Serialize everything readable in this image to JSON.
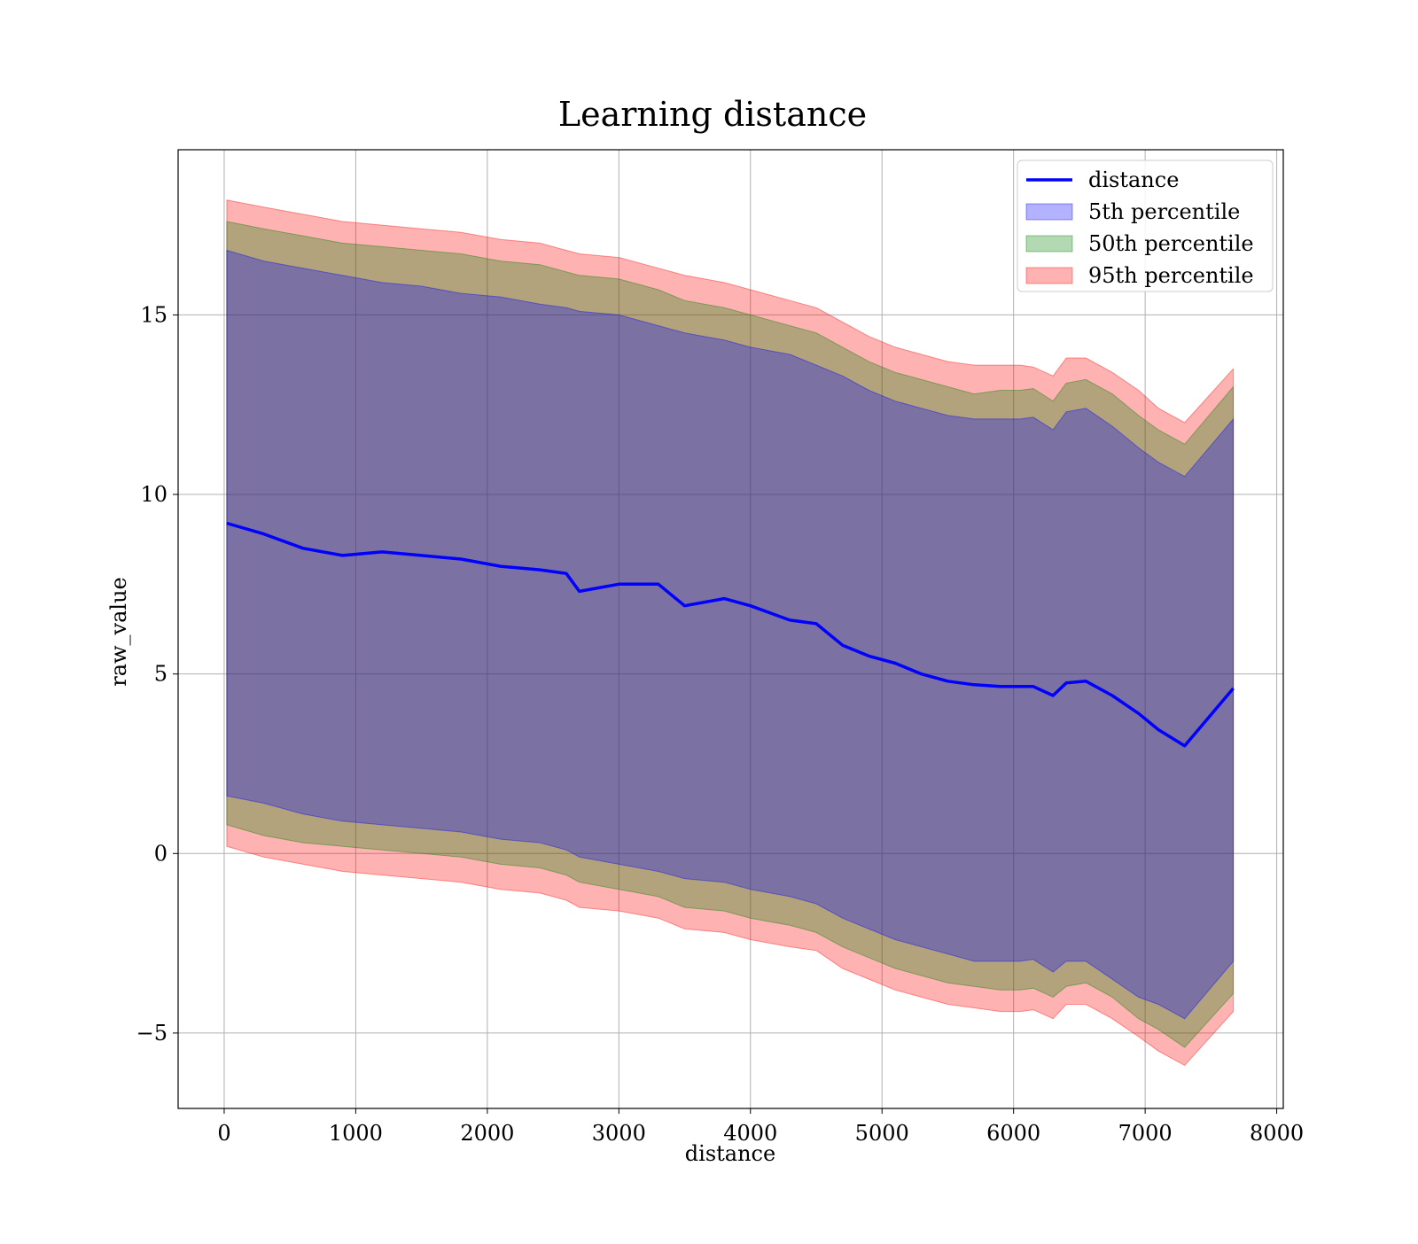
{
  "chart_data": {
    "type": "area",
    "title": "Learning distance",
    "xlabel": "distance",
    "ylabel": "raw_value",
    "xlim": [
      -350,
      8050
    ],
    "ylim": [
      -7.1,
      19.6
    ],
    "xticks": [
      0,
      1000,
      2000,
      3000,
      4000,
      5000,
      6000,
      7000,
      8000
    ],
    "xtick_labels": [
      "0",
      "1000",
      "2000",
      "3000",
      "4000",
      "5000",
      "6000",
      "7000",
      "8000"
    ],
    "yticks": [
      -5,
      0,
      5,
      10,
      15
    ],
    "ytick_labels": [
      "−5",
      "0",
      "5",
      "10",
      "15"
    ],
    "grid": true,
    "legend_position": "top-right",
    "colors": {
      "line": "#0000ff",
      "band_5th": "#0000ff",
      "band_50th": "#008000",
      "band_95th": "#ff0000"
    },
    "x": [
      20,
      300,
      600,
      900,
      1200,
      1500,
      1800,
      2100,
      2400,
      2600,
      2700,
      3000,
      3300,
      3500,
      3800,
      4000,
      4300,
      4500,
      4700,
      4900,
      5100,
      5300,
      5500,
      5700,
      5900,
      6050,
      6150,
      6300,
      6400,
      6550,
      6750,
      6950,
      7100,
      7300,
      7670
    ],
    "series": [
      {
        "name": "distance",
        "kind": "line",
        "y": [
          9.2,
          8.9,
          8.5,
          8.3,
          8.4,
          8.3,
          8.2,
          8.0,
          7.9,
          7.8,
          7.3,
          7.5,
          7.5,
          6.9,
          7.1,
          6.9,
          6.5,
          6.4,
          5.8,
          5.5,
          5.3,
          5.0,
          4.8,
          4.7,
          4.65,
          4.65,
          4.65,
          4.4,
          4.75,
          4.8,
          4.4,
          3.9,
          3.45,
          3.0,
          4.6
        ]
      },
      {
        "name": "5th percentile",
        "kind": "band",
        "lower": [
          1.6,
          1.4,
          1.1,
          0.9,
          0.8,
          0.7,
          0.6,
          0.4,
          0.3,
          0.1,
          -0.1,
          -0.3,
          -0.5,
          -0.7,
          -0.8,
          -1.0,
          -1.2,
          -1.4,
          -1.8,
          -2.1,
          -2.4,
          -2.6,
          -2.8,
          -3.0,
          -3.0,
          -3.0,
          -2.95,
          -3.3,
          -3.0,
          -3.0,
          -3.5,
          -4.0,
          -4.2,
          -4.6,
          -3.0
        ],
        "upper": [
          16.8,
          16.5,
          16.3,
          16.1,
          15.9,
          15.8,
          15.6,
          15.5,
          15.3,
          15.2,
          15.1,
          15.0,
          14.7,
          14.5,
          14.3,
          14.1,
          13.9,
          13.6,
          13.3,
          12.9,
          12.6,
          12.4,
          12.2,
          12.1,
          12.1,
          12.1,
          12.15,
          11.8,
          12.3,
          12.4,
          11.9,
          11.3,
          10.9,
          10.5,
          12.1
        ]
      },
      {
        "name": "50th percentile",
        "kind": "band",
        "lower": [
          0.8,
          0.5,
          0.3,
          0.2,
          0.1,
          0.0,
          -0.1,
          -0.3,
          -0.4,
          -0.6,
          -0.8,
          -1.0,
          -1.2,
          -1.5,
          -1.6,
          -1.8,
          -2.0,
          -2.2,
          -2.6,
          -2.9,
          -3.2,
          -3.4,
          -3.6,
          -3.7,
          -3.8,
          -3.8,
          -3.75,
          -4.0,
          -3.7,
          -3.6,
          -4.0,
          -4.6,
          -4.9,
          -5.4,
          -3.9
        ],
        "upper": [
          17.6,
          17.4,
          17.2,
          17.0,
          16.9,
          16.8,
          16.7,
          16.5,
          16.4,
          16.2,
          16.1,
          16.0,
          15.7,
          15.4,
          15.2,
          15.0,
          14.7,
          14.5,
          14.1,
          13.7,
          13.4,
          13.2,
          13.0,
          12.8,
          12.9,
          12.9,
          12.95,
          12.6,
          13.1,
          13.2,
          12.8,
          12.2,
          11.8,
          11.4,
          13.0
        ]
      },
      {
        "name": "95th percentile",
        "kind": "band",
        "lower": [
          0.2,
          -0.1,
          -0.3,
          -0.5,
          -0.6,
          -0.7,
          -0.8,
          -1.0,
          -1.1,
          -1.3,
          -1.5,
          -1.6,
          -1.8,
          -2.1,
          -2.2,
          -2.4,
          -2.6,
          -2.7,
          -3.2,
          -3.5,
          -3.8,
          -4.0,
          -4.2,
          -4.3,
          -4.4,
          -4.4,
          -4.35,
          -4.6,
          -4.2,
          -4.2,
          -4.6,
          -5.1,
          -5.5,
          -5.9,
          -4.4
        ],
        "upper": [
          18.2,
          18.0,
          17.8,
          17.6,
          17.5,
          17.4,
          17.3,
          17.1,
          17.0,
          16.8,
          16.7,
          16.6,
          16.3,
          16.1,
          15.9,
          15.7,
          15.4,
          15.2,
          14.8,
          14.4,
          14.1,
          13.9,
          13.7,
          13.6,
          13.6,
          13.6,
          13.55,
          13.3,
          13.8,
          13.8,
          13.4,
          12.9,
          12.4,
          12.0,
          13.5
        ]
      }
    ]
  }
}
